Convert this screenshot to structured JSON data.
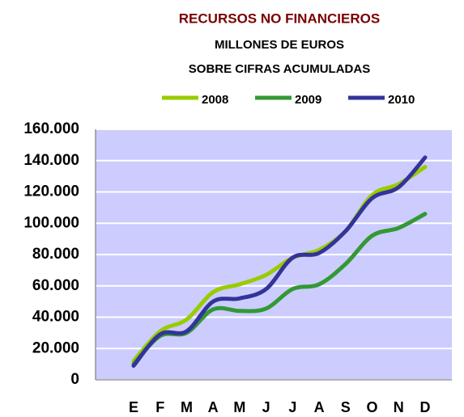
{
  "chart_data": {
    "type": "line",
    "title": "RECURSOS NO FINANCIEROS",
    "subtitle": [
      "MILLONES DE EUROS",
      "SOBRE CIFRAS ACUMULADAS"
    ],
    "categories": [
      "E",
      "F",
      "M",
      "A",
      "M",
      "J",
      "J",
      "A",
      "S",
      "O",
      "N",
      "D"
    ],
    "series": [
      {
        "name": "2008",
        "color": "#99cc00",
        "values": [
          12000,
          31000,
          38500,
          56000,
          61000,
          67000,
          78000,
          83000,
          95000,
          118000,
          125000,
          136000
        ]
      },
      {
        "name": "2009",
        "color": "#339933",
        "values": [
          10000,
          28000,
          30000,
          45000,
          44000,
          45500,
          58000,
          61000,
          74000,
          92000,
          97000,
          106000
        ]
      },
      {
        "name": "2010",
        "color": "#333399",
        "values": [
          9000,
          29000,
          31000,
          50000,
          52000,
          58000,
          78000,
          81000,
          95000,
          116000,
          123000,
          142000
        ]
      }
    ],
    "ylim": [
      0,
      160000
    ],
    "yticks": [
      0,
      {
        "value": 20000,
        "label": "20.000"
      },
      {
        "value": 40000,
        "label": "40.000"
      },
      {
        "value": 60000,
        "label": "60.000"
      },
      {
        "value": 80000,
        "label": "80.000"
      },
      {
        "value": 100000,
        "label": "100.000"
      },
      {
        "value": 120000,
        "label": "120.000"
      },
      {
        "value": 140000,
        "label": "140.000"
      },
      {
        "value": 160000,
        "label": "160.000"
      }
    ],
    "grid": true,
    "legend": "top"
  }
}
